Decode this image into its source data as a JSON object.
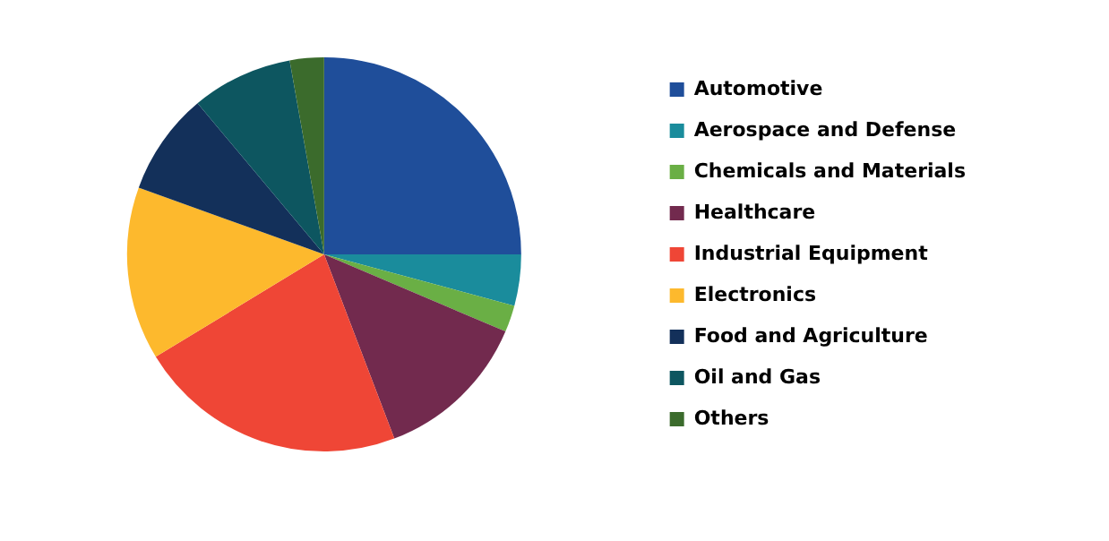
{
  "chart_data": {
    "type": "pie",
    "categories": [
      "Automotive",
      "Aerospace and Defense",
      "Chemicals and Materials",
      "Healthcare",
      "Industrial Equipment",
      "Electronics",
      "Food and Agriculture",
      "Oil and Gas",
      "Others"
    ],
    "values": [
      25,
      4.2,
      2.2,
      12.8,
      22.1,
      14.2,
      8.4,
      8.3,
      2.8
    ],
    "colors": [
      "#1f4e9a",
      "#1a8c9c",
      "#6aaf45",
      "#722a4e",
      "#ef4636",
      "#fdb92d",
      "#13305a",
      "#0d5660",
      "#3b6b2c"
    ],
    "legend": "right"
  }
}
